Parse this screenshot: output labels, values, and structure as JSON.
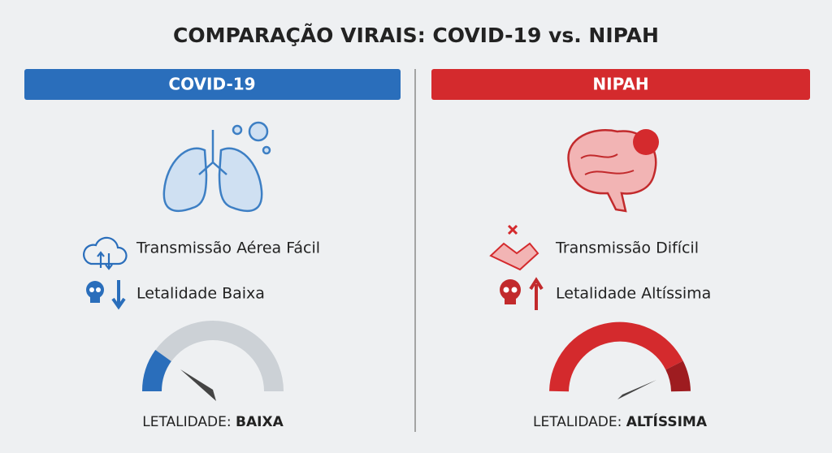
{
  "title": "COMPARAÇÃO VIRAIS: COVID-19 vs. NIPAH",
  "panels": [
    {
      "header": "COVID-19",
      "features": [
        "Transmissão Aérea Fácil",
        "Letalidade Baixa"
      ],
      "gauge": {
        "label": "LETALIDADE:",
        "level": "BAIXA"
      }
    },
    {
      "header": "NIPAH",
      "features": [
        "Transmissão Difícil",
        "Letalidade Altíssima"
      ],
      "gauge": {
        "label": "LETALIDADE:",
        "level": "ALTÍSSIMA"
      }
    }
  ]
}
